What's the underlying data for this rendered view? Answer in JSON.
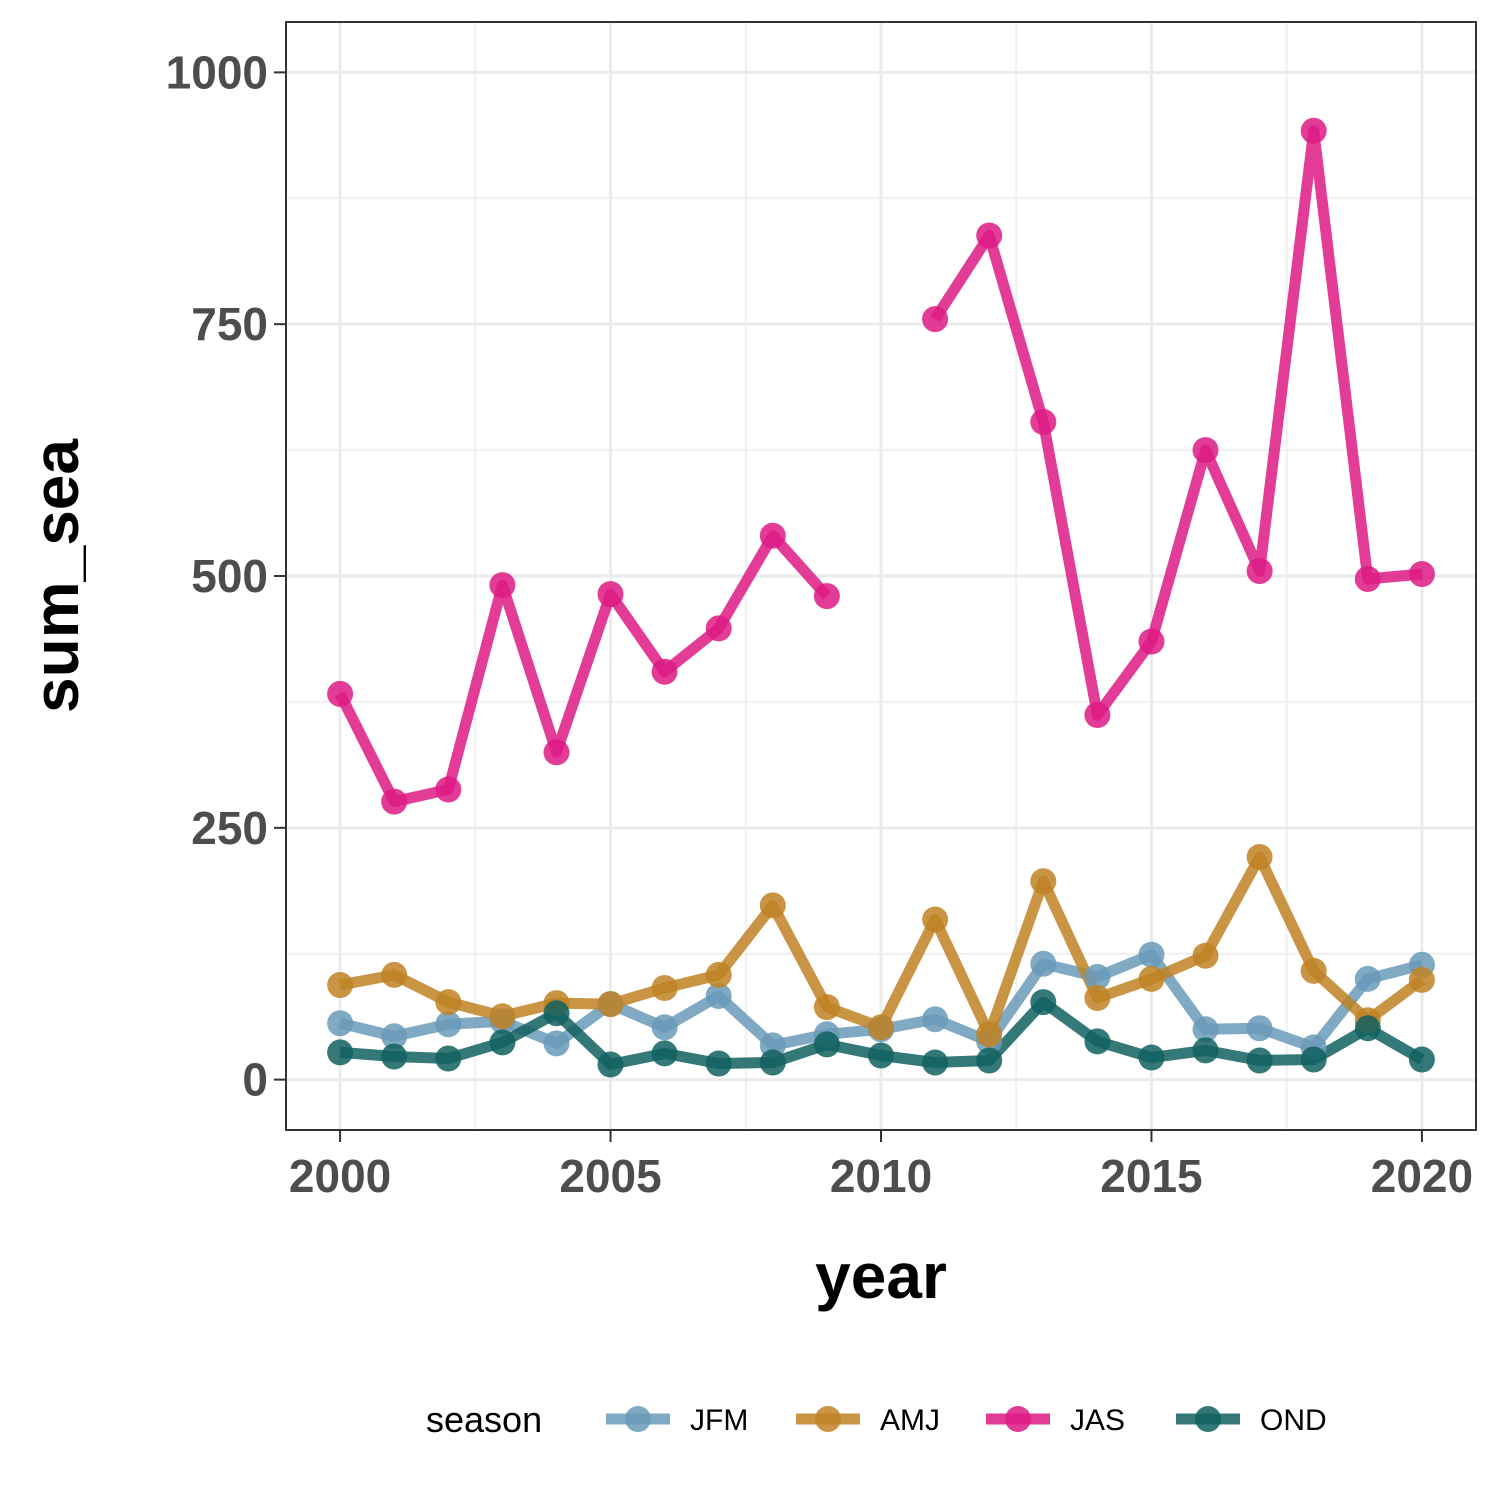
{
  "chart_data": {
    "type": "line",
    "xlabel": "year",
    "ylabel": "sum_sea",
    "xlim": [
      1999,
      2021
    ],
    "ylim": [
      -50,
      1050
    ],
    "x_ticks": [
      2000,
      2005,
      2010,
      2015,
      2020
    ],
    "y_ticks": [
      0,
      250,
      500,
      750,
      1000
    ],
    "x_tick_labels": [
      "2000",
      "2005",
      "2010",
      "2015",
      "2020"
    ],
    "y_tick_labels": [
      "0",
      "250",
      "500",
      "750",
      "1000"
    ],
    "grid": true,
    "legend": {
      "title": "season",
      "position": "bottom"
    },
    "x": [
      2000,
      2001,
      2002,
      2003,
      2004,
      2005,
      2006,
      2007,
      2008,
      2009,
      2010,
      2011,
      2012,
      2013,
      2014,
      2015,
      2016,
      2017,
      2018,
      2019,
      2020
    ],
    "series": [
      {
        "name": "JFM",
        "color": "#6a9ab8",
        "values": [
          56,
          43,
          55,
          58,
          36,
          75,
          52,
          83,
          34,
          45,
          50,
          60,
          38,
          115,
          102,
          124,
          50,
          51,
          32,
          100,
          114
        ]
      },
      {
        "name": "AMJ",
        "color": "#bf8224",
        "values": [
          94,
          104,
          77,
          63,
          76,
          75,
          91,
          104,
          173,
          72,
          52,
          159,
          45,
          197,
          81,
          100,
          123,
          221,
          108,
          59,
          99
        ]
      },
      {
        "name": "JAS",
        "color": "#de1a85",
        "values": [
          383,
          276,
          288,
          491,
          325,
          482,
          405,
          448,
          540,
          480,
          null,
          755,
          838,
          653,
          362,
          435,
          625,
          505,
          942,
          497,
          502
        ]
      },
      {
        "name": "OND",
        "color": "#126060",
        "values": [
          27,
          23,
          21,
          37,
          66,
          15,
          26,
          16,
          17,
          35,
          24,
          17,
          19,
          77,
          38,
          22,
          29,
          19,
          20,
          51,
          20
        ]
      }
    ]
  }
}
